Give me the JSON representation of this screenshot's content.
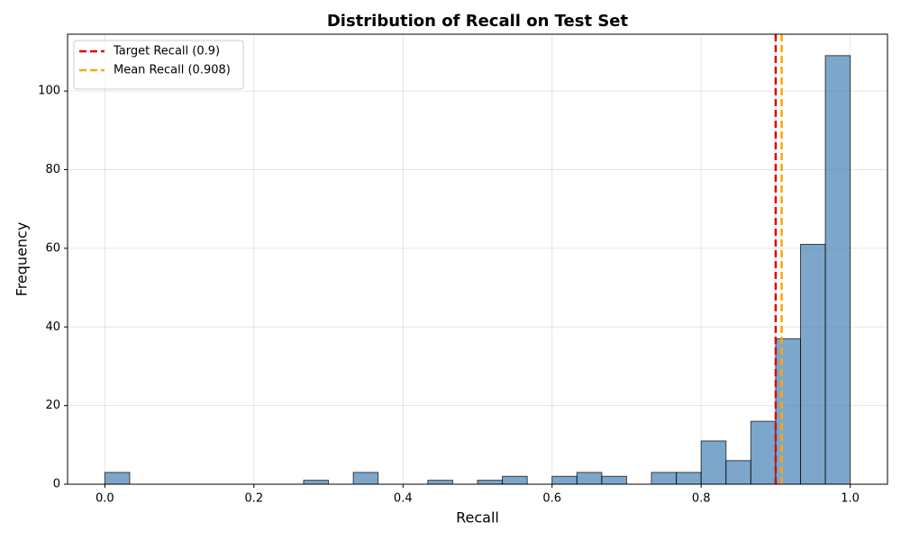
{
  "chart_data": {
    "type": "histogram",
    "title": "Distribution of Recall on Test Set",
    "x_label": "Recall",
    "y_label": "Frequency",
    "bins": [
      0,
      0.03333,
      0.06667,
      0.1,
      0.13333,
      0.16667,
      0.2,
      0.23333,
      0.26667,
      0.3,
      0.33333,
      0.36667,
      0.4,
      0.43333,
      0.46667,
      0.5,
      0.53333,
      0.56667,
      0.6,
      0.63333,
      0.66667,
      0.7,
      0.73333,
      0.76667,
      0.8,
      0.83333,
      0.86667,
      0.9,
      0.93333,
      0.96667,
      1
    ],
    "counts": [
      3,
      0,
      0,
      0,
      0,
      0,
      0,
      0,
      1,
      0,
      3,
      0,
      0,
      1,
      0,
      1,
      2,
      0,
      2,
      3,
      2,
      0,
      3,
      3,
      11,
      6,
      16,
      37,
      61,
      109
    ],
    "color": "#4682b4",
    "edge_color": "#000000",
    "reference_lines": [
      {
        "label": "Target Recall (0.9)",
        "value": 0.9,
        "color": "#e00000"
      },
      {
        "label": "Mean Recall (0.908)",
        "value": 0.908,
        "color": "#ffa500"
      }
    ],
    "xlim": [
      -0.05,
      1.05
    ],
    "ylim": [
      0,
      114.45
    ],
    "xticks": [
      {
        "value": 0,
        "label": "0.0"
      },
      0.2,
      0.4,
      0.6,
      0.8,
      {
        "value": 1,
        "label": "1.0"
      }
    ],
    "yticks": [
      0,
      20,
      40,
      60,
      80,
      100
    ],
    "grid": true,
    "legend": "upper left"
  }
}
